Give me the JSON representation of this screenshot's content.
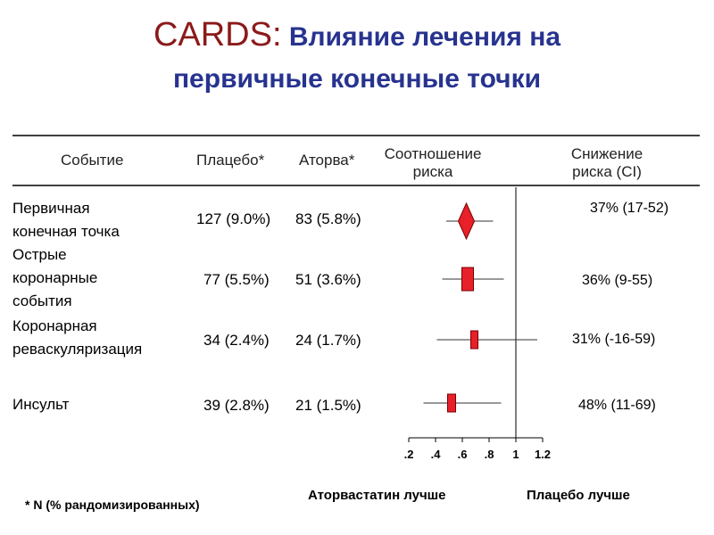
{
  "title": {
    "part1": "CARDS:",
    "part2": " Влияние лечения на",
    "line2": "первичные конечные точки"
  },
  "table": {
    "headers": {
      "event": "Событие",
      "placebo": "Плацебо*",
      "atorva": "Аторва*",
      "ratio_line1": "Соотношение",
      "ratio_line2": "риска",
      "reduction_line1": "Снижение",
      "reduction_line2": "риска (CI)"
    },
    "rows": [
      {
        "label_lines": [
          "Первичная",
          "конечная точка"
        ],
        "placebo": "127 (9.0%)",
        "atorva": "83 (5.8%)",
        "reduction": "37% (17-52)"
      },
      {
        "label_lines": [
          "Острые",
          "коронарные",
          "события"
        ],
        "placebo": "77 (5.5%)",
        "atorva": "51 (3.6%)",
        "reduction": "36% (9-55)"
      },
      {
        "label_lines": [
          "Коронарная",
          "реваскуляризация"
        ],
        "placebo": "34 (2.4%)",
        "atorva": "24 (1.7%)",
        "reduction": "31% (-16-59)"
      },
      {
        "label_lines": [
          "Инсульт"
        ],
        "placebo": "39 (2.8%)",
        "atorva": "21 (1.5%)",
        "reduction": "48% (11-69)"
      }
    ]
  },
  "chart_data": {
    "type": "scatter",
    "subtype": "forest",
    "xlim": [
      0.2,
      1.2
    ],
    "xticks": [
      ".2",
      ".4",
      ".6",
      ".8",
      "1",
      "1.2"
    ],
    "xtick_values": [
      0.2,
      0.4,
      0.6,
      0.8,
      1.0,
      1.2
    ],
    "reference_line": 1.0,
    "points": [
      {
        "hr": 0.63,
        "ci_low": 0.48,
        "ci_high": 0.83,
        "marker": "diamond"
      },
      {
        "hr": 0.64,
        "ci_low": 0.45,
        "ci_high": 0.91,
        "marker": "square"
      },
      {
        "hr": 0.69,
        "ci_low": 0.41,
        "ci_high": 1.16,
        "marker": "square"
      },
      {
        "hr": 0.52,
        "ci_low": 0.31,
        "ci_high": 0.89,
        "marker": "square"
      }
    ],
    "marker_color": "#e8202a",
    "left_label": "Аторвастатин лучше",
    "right_label": "Плацебо лучше"
  },
  "footnote": "* N (% рандомизированных)"
}
